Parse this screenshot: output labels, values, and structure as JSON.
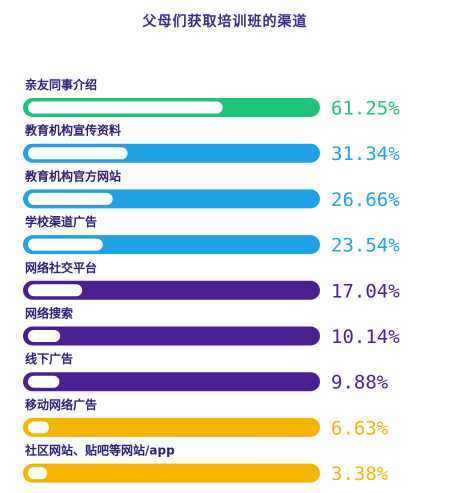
{
  "chart_data": {
    "type": "bar",
    "orientation": "horizontal",
    "title": "父母们获取培训班的渠道",
    "categories": [
      "亲友同事介绍",
      "教育机构宣传资料",
      "教育机构官方网站",
      "学校渠道广告",
      "网络社交平台",
      "网络搜索",
      "线下广告",
      "移动网络广告",
      "社区网站、贴吧等网站/app"
    ],
    "values": [
      61.25,
      31.34,
      26.66,
      23.54,
      17.04,
      10.14,
      9.88,
      6.63,
      3.38
    ],
    "value_labels": [
      "61.25%",
      "31.34%",
      "26.66%",
      "23.54%",
      "17.04%",
      "10.14%",
      "9.88%",
      "6.63%",
      "3.38%"
    ],
    "xlim": [
      0,
      100
    ],
    "colors": [
      "#1fc47a",
      "#1fa3e6",
      "#1fa3e6",
      "#1fa3e6",
      "#4b1e93",
      "#4b1e93",
      "#4b1e93",
      "#f6b400",
      "#f6b400"
    ],
    "value_label_colors": [
      "#1fc47a",
      "#1fa3e6",
      "#1fa3e6",
      "#1fa3e6",
      "#4b1e93",
      "#4b1e93",
      "#4b1e93",
      "#f6b400",
      "#f6b400"
    ],
    "grid": false,
    "legend": "none"
  }
}
